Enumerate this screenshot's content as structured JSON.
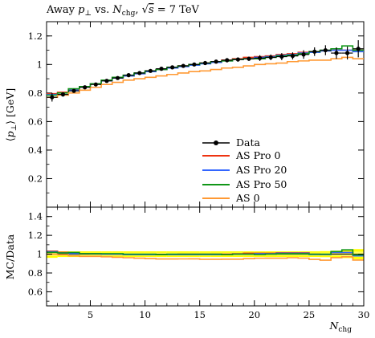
{
  "chart_data": {
    "type": "line",
    "title": "Away ⟨p⊥⟩ vs. Nchg, √s = 7 TeV",
    "title_parts": {
      "prefix": "Away ",
      "p": "p",
      "perp": "⊥",
      "vs": " vs. ",
      "N": "N",
      "sub": "chg",
      "sep": ", ",
      "root": "√",
      "s": "s",
      "energy": " = 7 TeV"
    },
    "ylabel": "⟨p⊥⟩ [GeV]",
    "ylabel_parts": {
      "open": "⟨",
      "p": "p",
      "perp": "⊥",
      "close": "⟩",
      "unit": " [GeV]"
    },
    "ratio_ylabel": "MC/Data",
    "xlabel": "Nchg",
    "xlabel_parts": {
      "N": "N",
      "sub": "chg"
    },
    "xlim": [
      1,
      30
    ],
    "ylim": [
      0,
      1.3
    ],
    "ratio_ylim": [
      0.45,
      1.5
    ],
    "xticks": [
      5,
      10,
      15,
      20,
      25,
      30
    ],
    "yticks": [
      0.2,
      0.4,
      0.6,
      0.8,
      1,
      1.2
    ],
    "ratio_yticks": [
      0.6,
      0.8,
      1,
      1.2,
      1.4
    ],
    "legend_position": "lower-right",
    "bins": [
      [
        1,
        2
      ],
      [
        2,
        3
      ],
      [
        3,
        4
      ],
      [
        4,
        5
      ],
      [
        5,
        6
      ],
      [
        6,
        7
      ],
      [
        7,
        8
      ],
      [
        8,
        9
      ],
      [
        9,
        10
      ],
      [
        10,
        11
      ],
      [
        11,
        12
      ],
      [
        12,
        13
      ],
      [
        13,
        14
      ],
      [
        14,
        15
      ],
      [
        15,
        16
      ],
      [
        16,
        17
      ],
      [
        17,
        18
      ],
      [
        18,
        19
      ],
      [
        19,
        20
      ],
      [
        20,
        21
      ],
      [
        21,
        22
      ],
      [
        22,
        23
      ],
      [
        23,
        24
      ],
      [
        24,
        25
      ],
      [
        25,
        26
      ],
      [
        26,
        27
      ],
      [
        27,
        28
      ],
      [
        28,
        29
      ],
      [
        29,
        30
      ]
    ],
    "data": {
      "name": "Data",
      "x": [
        1.5,
        2.5,
        3.5,
        4.5,
        5.5,
        6.5,
        7.5,
        8.5,
        9.5,
        10.5,
        11.5,
        12.5,
        13.5,
        14.5,
        15.5,
        16.5,
        17.5,
        18.5,
        19.5,
        20.5,
        21.5,
        22.5,
        23.5,
        24.5,
        25.5,
        26.5,
        27.5,
        28.5,
        29.5
      ],
      "y": [
        0.77,
        0.79,
        0.815,
        0.84,
        0.86,
        0.885,
        0.905,
        0.925,
        0.94,
        0.955,
        0.97,
        0.98,
        0.99,
        1.0,
        1.01,
        1.02,
        1.03,
        1.035,
        1.04,
        1.045,
        1.05,
        1.055,
        1.06,
        1.07,
        1.09,
        1.1,
        1.08,
        1.08,
        1.11
      ],
      "err": [
        0.03,
        0.015,
        0.01,
        0.01,
        0.008,
        0.008,
        0.008,
        0.008,
        0.008,
        0.01,
        0.01,
        0.01,
        0.01,
        0.01,
        0.012,
        0.012,
        0.015,
        0.015,
        0.015,
        0.02,
        0.02,
        0.025,
        0.025,
        0.03,
        0.03,
        0.035,
        0.04,
        0.045,
        0.06
      ],
      "color": "#000000"
    },
    "series": [
      {
        "name": "AS Pro 0",
        "color": "#ee3311",
        "values": [
          0.795,
          0.805,
          0.825,
          0.845,
          0.865,
          0.885,
          0.905,
          0.92,
          0.935,
          0.95,
          0.965,
          0.975,
          0.99,
          1.0,
          1.01,
          1.02,
          1.03,
          1.04,
          1.05,
          1.055,
          1.06,
          1.07,
          1.075,
          1.085,
          1.09,
          1.095,
          1.1,
          1.1,
          1.1
        ]
      },
      {
        "name": "AS Pro 20",
        "color": "#3366ff",
        "values": [
          0.79,
          0.8,
          0.82,
          0.845,
          0.865,
          0.885,
          0.905,
          0.92,
          0.935,
          0.95,
          0.965,
          0.975,
          0.985,
          0.995,
          1.005,
          1.015,
          1.025,
          1.035,
          1.04,
          1.05,
          1.055,
          1.065,
          1.07,
          1.08,
          1.085,
          1.095,
          1.1,
          1.1,
          1.09
        ]
      },
      {
        "name": "AS Pro 50",
        "color": "#109618",
        "values": [
          0.785,
          0.8,
          0.83,
          0.845,
          0.865,
          0.89,
          0.91,
          0.925,
          0.94,
          0.955,
          0.965,
          0.98,
          0.99,
          1.0,
          1.01,
          1.02,
          1.025,
          1.035,
          1.04,
          1.04,
          1.05,
          1.06,
          1.065,
          1.075,
          1.09,
          1.1,
          1.11,
          1.13,
          1.1
        ]
      },
      {
        "name": "AS 0",
        "color": "#ff9933",
        "values": [
          0.77,
          0.785,
          0.8,
          0.82,
          0.84,
          0.86,
          0.875,
          0.89,
          0.9,
          0.91,
          0.92,
          0.93,
          0.94,
          0.95,
          0.955,
          0.965,
          0.975,
          0.98,
          0.99,
          1.0,
          1.005,
          1.01,
          1.02,
          1.025,
          1.03,
          1.03,
          1.04,
          1.05,
          1.04
        ]
      }
    ],
    "ratio_band_colors": {
      "outer": "#ffff00",
      "inner": "#ffff66"
    },
    "legend_entries": [
      "Data",
      "AS Pro 0",
      "AS Pro 20",
      "AS Pro 50",
      "AS 0"
    ]
  }
}
